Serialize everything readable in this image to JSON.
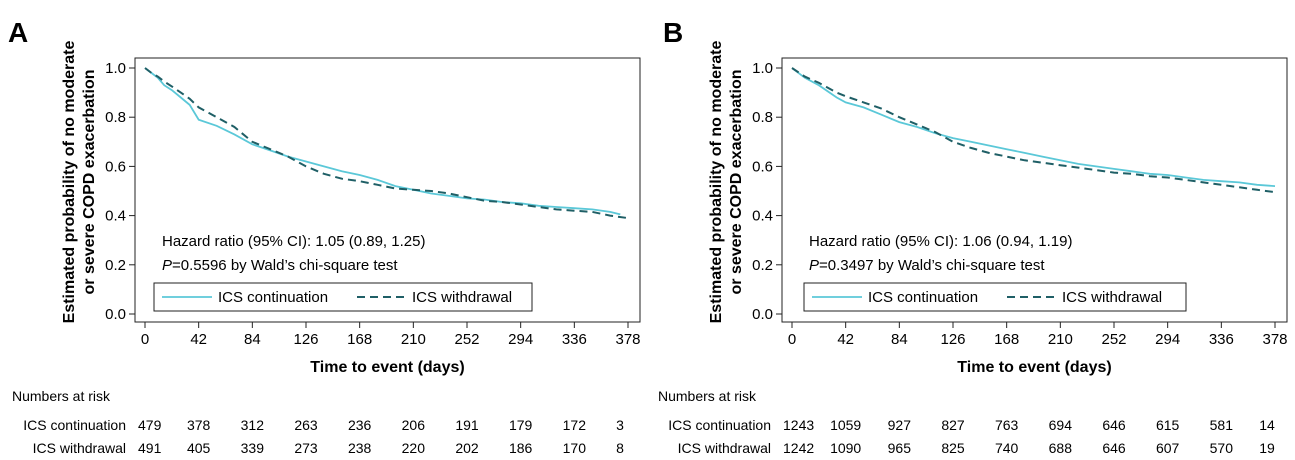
{
  "chart_data": [
    {
      "type": "line",
      "panel_label": "A",
      "xlabel": "Time to event (days)",
      "ylabel": [
        "Estimated probability of no moderate",
        "or severe COPD exacerbation"
      ],
      "xlim": [
        0,
        378
      ],
      "ylim": [
        0,
        1.0
      ],
      "xticks": [
        0,
        42,
        84,
        126,
        168,
        210,
        252,
        294,
        336,
        378
      ],
      "yticks": [
        "0.0",
        "0.2",
        "0.4",
        "0.6",
        "0.8",
        "1.0"
      ],
      "annotations": {
        "hr_line": "Hazard ratio (95% CI):  1.05 (0.89, 1.25)",
        "p_italic": "P",
        "p_rest": "=0.5596 by Wald’s chi-square test"
      },
      "legend": {
        "placement": "lower-left"
      },
      "series": [
        {
          "name": "ICS continuation",
          "color": "#5bc8d8",
          "style": "solid",
          "x": [
            0,
            5,
            10,
            15,
            21,
            28,
            35,
            42,
            56,
            70,
            84,
            98,
            112,
            126,
            140,
            154,
            168,
            182,
            196,
            210,
            224,
            238,
            252,
            266,
            280,
            294,
            308,
            322,
            336,
            350,
            364,
            372
          ],
          "y": [
            1.0,
            0.98,
            0.96,
            0.93,
            0.91,
            0.88,
            0.85,
            0.79,
            0.765,
            0.73,
            0.69,
            0.665,
            0.64,
            0.62,
            0.6,
            0.58,
            0.565,
            0.545,
            0.52,
            0.505,
            0.49,
            0.48,
            0.47,
            0.465,
            0.455,
            0.45,
            0.44,
            0.435,
            0.43,
            0.425,
            0.415,
            0.405
          ]
        },
        {
          "name": "ICS withdrawal",
          "color": "#1f5f66",
          "style": "dashed",
          "x": [
            0,
            5,
            10,
            15,
            21,
            28,
            35,
            42,
            56,
            70,
            84,
            98,
            112,
            126,
            140,
            154,
            168,
            182,
            196,
            210,
            224,
            238,
            252,
            266,
            280,
            294,
            308,
            322,
            336,
            350,
            364,
            378
          ],
          "y": [
            1.0,
            0.98,
            0.965,
            0.945,
            0.925,
            0.9,
            0.875,
            0.84,
            0.8,
            0.76,
            0.7,
            0.67,
            0.64,
            0.6,
            0.57,
            0.55,
            0.54,
            0.525,
            0.51,
            0.505,
            0.5,
            0.49,
            0.475,
            0.46,
            0.455,
            0.445,
            0.435,
            0.425,
            0.42,
            0.415,
            0.4,
            0.39
          ]
        }
      ],
      "numbers_at_risk": {
        "heading": "Numbers at risk",
        "rows": [
          {
            "label": "ICS continuation",
            "values": [
              "479",
              "378",
              "312",
              "263",
              "236",
              "206",
              "191",
              "179",
              "172",
              "3"
            ]
          },
          {
            "label": "ICS withdrawal",
            "values": [
              "491",
              "405",
              "339",
              "273",
              "238",
              "220",
              "202",
              "186",
              "170",
              "8"
            ]
          }
        ]
      }
    },
    {
      "type": "line",
      "panel_label": "B",
      "xlabel": "Time to event (days)",
      "ylabel": [
        "Estimated probability of no moderate",
        "or severe COPD exacerbation"
      ],
      "xlim": [
        0,
        378
      ],
      "ylim": [
        0,
        1.0
      ],
      "xticks": [
        0,
        42,
        84,
        126,
        168,
        210,
        252,
        294,
        336,
        378
      ],
      "yticks": [
        "0.0",
        "0.2",
        "0.4",
        "0.6",
        "0.8",
        "1.0"
      ],
      "annotations": {
        "hr_line": "Hazard ratio (95% CI): 1.06 (0.94, 1.19)",
        "p_italic": "P",
        "p_rest": "=0.3497 by Wald’s chi-square test"
      },
      "legend": {
        "placement": "lower-left"
      },
      "series": [
        {
          "name": "ICS continuation",
          "color": "#5bc8d8",
          "style": "solid",
          "x": [
            0,
            10,
            21,
            35,
            42,
            56,
            70,
            84,
            98,
            112,
            126,
            140,
            154,
            168,
            182,
            196,
            210,
            224,
            238,
            252,
            266,
            280,
            294,
            308,
            322,
            336,
            350,
            364,
            378
          ],
          "y": [
            1.0,
            0.96,
            0.93,
            0.88,
            0.86,
            0.84,
            0.81,
            0.78,
            0.76,
            0.735,
            0.715,
            0.7,
            0.685,
            0.67,
            0.655,
            0.64,
            0.625,
            0.61,
            0.6,
            0.59,
            0.58,
            0.57,
            0.565,
            0.555,
            0.545,
            0.54,
            0.535,
            0.525,
            0.52
          ]
        },
        {
          "name": "ICS withdrawal",
          "color": "#1f5f66",
          "style": "dashed",
          "x": [
            0,
            10,
            21,
            35,
            42,
            56,
            70,
            84,
            98,
            112,
            126,
            140,
            154,
            168,
            182,
            196,
            210,
            224,
            238,
            252,
            266,
            280,
            294,
            308,
            322,
            336,
            350,
            364,
            378
          ],
          "y": [
            1.0,
            0.965,
            0.94,
            0.9,
            0.885,
            0.86,
            0.835,
            0.8,
            0.77,
            0.74,
            0.7,
            0.675,
            0.655,
            0.64,
            0.625,
            0.615,
            0.605,
            0.595,
            0.585,
            0.575,
            0.57,
            0.56,
            0.555,
            0.545,
            0.535,
            0.525,
            0.515,
            0.505,
            0.495
          ]
        }
      ],
      "numbers_at_risk": {
        "heading": "Numbers at risk",
        "rows": [
          {
            "label": "ICS continuation",
            "values": [
              "1243",
              "1059",
              "927",
              "827",
              "763",
              "694",
              "646",
              "615",
              "581",
              "14"
            ]
          },
          {
            "label": "ICS withdrawal",
            "values": [
              "1242",
              "1090",
              "965",
              "825",
              "740",
              "688",
              "646",
              "607",
              "570",
              "19"
            ]
          }
        ]
      }
    }
  ]
}
